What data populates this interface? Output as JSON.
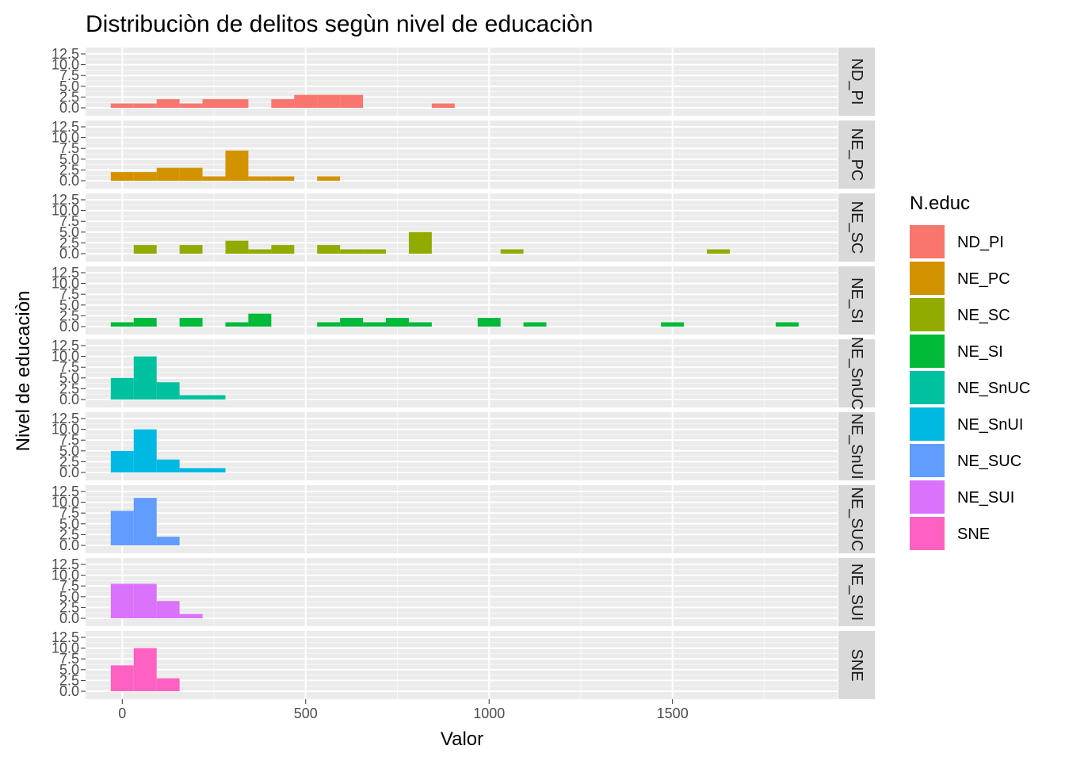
{
  "chart_data": {
    "type": "bar",
    "title": "Distribuciòn de delitos segùn nivel de educaciòn",
    "xlabel": "Valor",
    "ylabel": "Nivel de educaciòn",
    "xlim": [
      -100,
      1950
    ],
    "ylim": [
      0,
      12.5
    ],
    "x_ticks": [
      0,
      500,
      1000,
      1500
    ],
    "y_ticks": [
      0,
      2.5,
      5,
      7.5,
      10,
      12.5
    ],
    "y_tick_labels": [
      "0.0",
      "2.5",
      "5.0",
      "7.5",
      "10.0",
      "12.5"
    ],
    "bin_width": 62.5,
    "grid": true,
    "legend_title": "N.educ",
    "legend_position": "right",
    "series": [
      {
        "name": "ND_PI",
        "color": "#F8766D",
        "bins": [
          [
            0,
            1
          ],
          [
            62.5,
            1
          ],
          [
            125,
            2
          ],
          [
            187.5,
            1
          ],
          [
            250,
            2
          ],
          [
            312.5,
            2
          ],
          [
            437.5,
            2
          ],
          [
            500,
            3
          ],
          [
            562.5,
            3
          ],
          [
            625,
            3
          ],
          [
            875,
            1
          ]
        ]
      },
      {
        "name": "NE_PC",
        "color": "#D39200",
        "bins": [
          [
            0,
            2
          ],
          [
            62.5,
            2
          ],
          [
            125,
            3
          ],
          [
            187.5,
            3
          ],
          [
            250,
            1
          ],
          [
            312.5,
            7
          ],
          [
            375,
            1
          ],
          [
            437.5,
            1
          ],
          [
            562.5,
            1
          ]
        ]
      },
      {
        "name": "NE_SC",
        "color": "#93AA00",
        "bins": [
          [
            62.5,
            2
          ],
          [
            187.5,
            2
          ],
          [
            312.5,
            3
          ],
          [
            375,
            1
          ],
          [
            437.5,
            2
          ],
          [
            562.5,
            2
          ],
          [
            625,
            1
          ],
          [
            687.5,
            1
          ],
          [
            812.5,
            5
          ],
          [
            1062.5,
            1
          ],
          [
            1625,
            1
          ]
        ]
      },
      {
        "name": "NE_SI",
        "color": "#00BA38",
        "bins": [
          [
            0,
            1
          ],
          [
            62.5,
            2
          ],
          [
            187.5,
            2
          ],
          [
            312.5,
            1
          ],
          [
            375,
            3
          ],
          [
            562.5,
            1
          ],
          [
            625,
            2
          ],
          [
            687.5,
            1
          ],
          [
            750,
            2
          ],
          [
            812.5,
            1
          ],
          [
            1000,
            2
          ],
          [
            1125,
            1
          ],
          [
            1500,
            1
          ],
          [
            1812.5,
            1
          ]
        ]
      },
      {
        "name": "NE_SnUC",
        "color": "#00C19F",
        "bins": [
          [
            0,
            5
          ],
          [
            62.5,
            10
          ],
          [
            125,
            4
          ],
          [
            187.5,
            1
          ],
          [
            250,
            1
          ]
        ]
      },
      {
        "name": "NE_SnUI",
        "color": "#00B9E3",
        "bins": [
          [
            0,
            5
          ],
          [
            62.5,
            10
          ],
          [
            125,
            3
          ],
          [
            187.5,
            1
          ],
          [
            250,
            1
          ]
        ]
      },
      {
        "name": "NE_SUC",
        "color": "#619CFF",
        "bins": [
          [
            0,
            8
          ],
          [
            62.5,
            11
          ],
          [
            125,
            2
          ]
        ]
      },
      {
        "name": "NE_SUI",
        "color": "#DB72FB",
        "bins": [
          [
            0,
            8
          ],
          [
            62.5,
            8
          ],
          [
            125,
            4
          ],
          [
            187.5,
            1
          ]
        ]
      },
      {
        "name": "SNE",
        "color": "#FF61C3",
        "bins": [
          [
            0,
            6
          ],
          [
            62.5,
            10
          ],
          [
            125,
            3
          ]
        ]
      }
    ]
  }
}
